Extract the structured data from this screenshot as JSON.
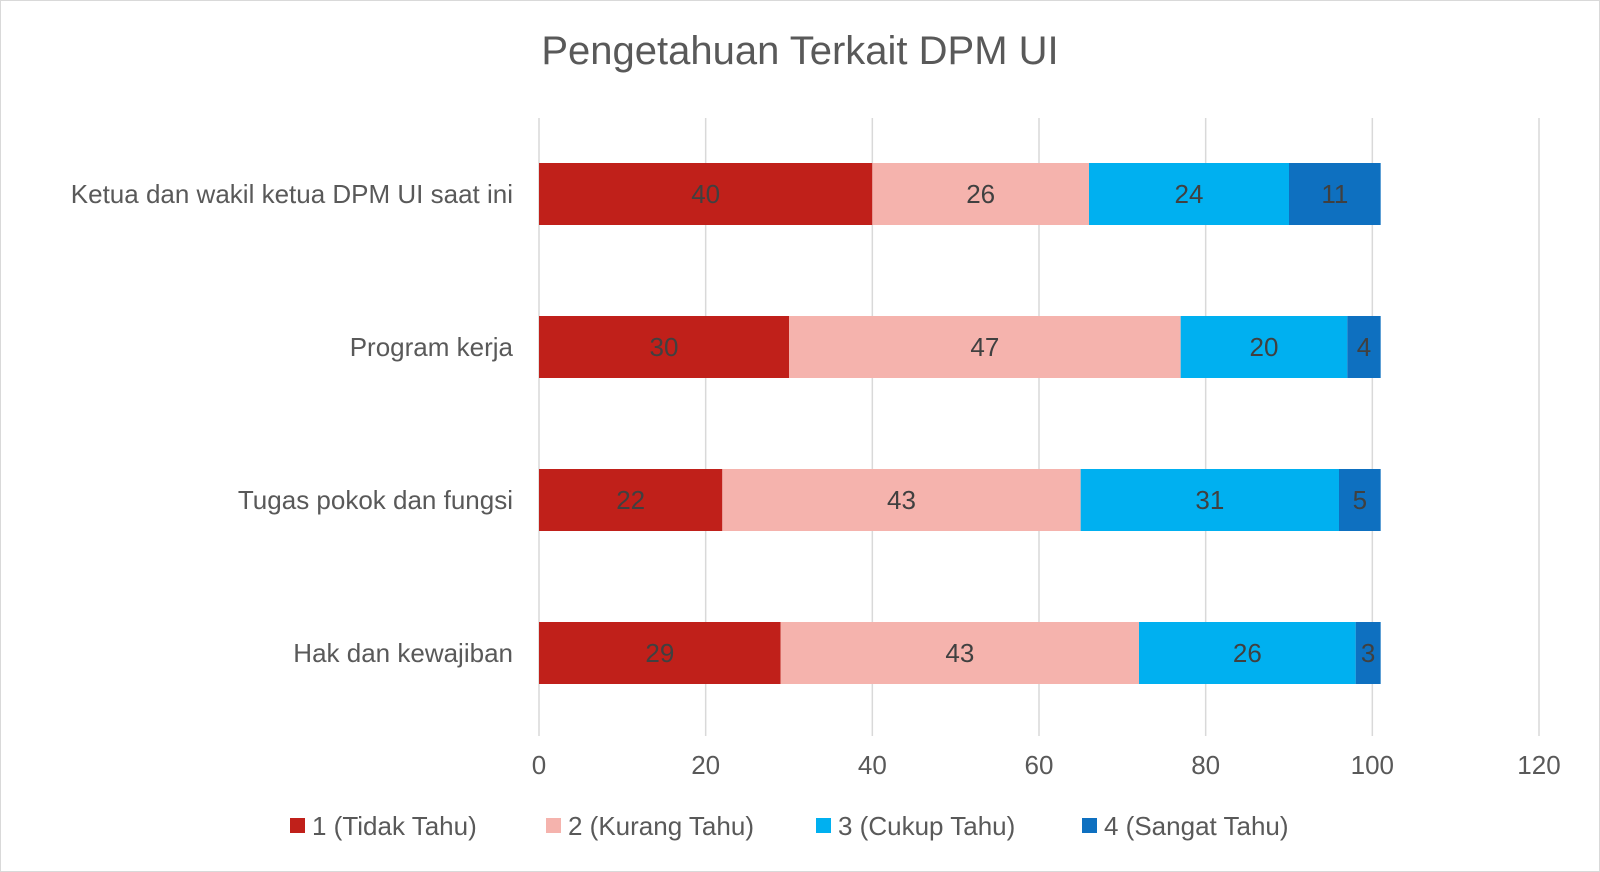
{
  "chart_data": {
    "type": "bar",
    "orientation": "horizontal",
    "stacked": true,
    "title": "Pengetahuan Terkait DPM UI",
    "categories": [
      "Ketua dan wakil ketua DPM UI saat ini",
      "Program kerja",
      "Tugas pokok dan fungsi",
      "Hak dan kewajiban"
    ],
    "series": [
      {
        "name": "1 (Tidak Tahu)",
        "color": "#c0201a",
        "values": [
          40,
          30,
          22,
          29
        ]
      },
      {
        "name": "2 (Kurang Tahu)",
        "color": "#f5b3ad",
        "values": [
          26,
          47,
          43,
          43
        ]
      },
      {
        "name": "3 (Cukup Tahu)",
        "color": "#00b0f0",
        "values": [
          24,
          20,
          31,
          26
        ]
      },
      {
        "name": "4 (Sangat Tahu)",
        "color": "#0e70c0",
        "values": [
          11,
          4,
          5,
          3
        ]
      }
    ],
    "xlim": [
      0,
      120
    ],
    "xticks": [
      0,
      20,
      40,
      60,
      80,
      100,
      120
    ],
    "grid": true,
    "legend_position": "bottom"
  }
}
